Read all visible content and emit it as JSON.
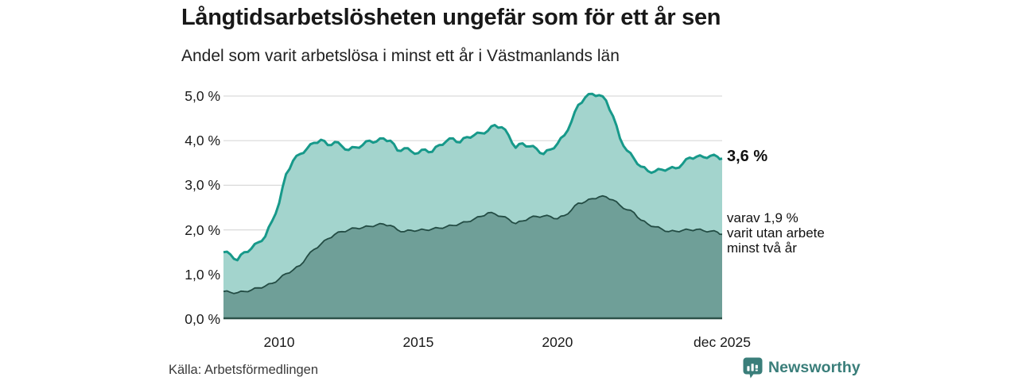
{
  "header": {
    "title": "Långtidsarbetslösheten ungefär som för ett år sen",
    "subtitle": "Andel som varit arbetslösa i minst ett år i Västmanlands län"
  },
  "annotations": {
    "total_end_label": "3,6 %",
    "subset_lines": [
      "varav 1,9 %",
      "varit utan arbete",
      "minst två år"
    ]
  },
  "footer": {
    "source": "Källa: Arbetsförmedlingen",
    "logo_text": "Newsworthy"
  },
  "colors": {
    "total_fill": "#a3d4cd",
    "total_stroke": "#17998a",
    "subset_fill": "#6f9f98",
    "subset_stroke": "#234c44",
    "axis_line": "#2d5249",
    "gridline": "#d9d9d9",
    "logo_teal": "#3a7e7a"
  },
  "chart_data": {
    "type": "area",
    "title": "Långtidsarbetslösheten ungefär som för ett år sen",
    "subtitle": "Andel som varit arbetslösa i minst ett år i Västmanlands län",
    "x_range": [
      2008.0,
      2025.92
    ],
    "ylim": [
      0,
      5
    ],
    "grid": true,
    "yticks": [
      {
        "value": 0,
        "label": "0,0 %"
      },
      {
        "value": 1,
        "label": "1,0 %"
      },
      {
        "value": 2,
        "label": "2,0 %"
      },
      {
        "value": 3,
        "label": "3,0 %"
      },
      {
        "value": 4,
        "label": "4,0 %"
      },
      {
        "value": 5,
        "label": "5,0 %"
      }
    ],
    "xticks": [
      {
        "year": 2010,
        "label": "2010"
      },
      {
        "year": 2015,
        "label": "2015"
      },
      {
        "year": 2020,
        "label": "2020"
      },
      {
        "year": 2025.92,
        "label": "dec 2025"
      }
    ],
    "x_years": [
      2008.0,
      2008.25,
      2008.5,
      2008.75,
      2009.0,
      2009.25,
      2009.5,
      2009.75,
      2010.0,
      2010.25,
      2010.5,
      2010.75,
      2011.0,
      2011.25,
      2011.5,
      2011.75,
      2012.0,
      2012.25,
      2012.5,
      2012.75,
      2013.0,
      2013.25,
      2013.5,
      2013.75,
      2014.0,
      2014.25,
      2014.5,
      2014.75,
      2015.0,
      2015.25,
      2015.5,
      2015.75,
      2016.0,
      2016.25,
      2016.5,
      2016.75,
      2017.0,
      2017.25,
      2017.5,
      2017.75,
      2018.0,
      2018.25,
      2018.5,
      2018.75,
      2019.0,
      2019.25,
      2019.5,
      2019.75,
      2020.0,
      2020.25,
      2020.5,
      2020.75,
      2021.0,
      2021.25,
      2021.5,
      2021.75,
      2022.0,
      2022.25,
      2022.5,
      2022.75,
      2023.0,
      2023.25,
      2023.5,
      2023.75,
      2024.0,
      2024.25,
      2024.5,
      2024.75,
      2025.0,
      2025.25,
      2025.5,
      2025.75,
      2025.92
    ],
    "series": [
      {
        "name": "Andel som varit arbetslösa i minst ett år",
        "end_value_label": "3,6 %",
        "values": [
          1.5,
          1.45,
          1.32,
          1.5,
          1.58,
          1.72,
          1.85,
          2.2,
          2.6,
          3.25,
          3.55,
          3.7,
          3.82,
          3.95,
          4.02,
          3.9,
          3.97,
          3.88,
          3.79,
          3.85,
          3.9,
          4.0,
          3.98,
          4.05,
          4.0,
          3.78,
          3.83,
          3.76,
          3.72,
          3.8,
          3.75,
          3.9,
          3.98,
          4.05,
          3.96,
          4.08,
          4.12,
          4.17,
          4.22,
          4.35,
          4.3,
          4.12,
          3.84,
          3.94,
          3.87,
          3.82,
          3.7,
          3.8,
          3.93,
          4.12,
          4.42,
          4.8,
          4.97,
          5.05,
          5.02,
          4.9,
          4.55,
          4.05,
          3.78,
          3.6,
          3.42,
          3.32,
          3.31,
          3.35,
          3.37,
          3.38,
          3.48,
          3.62,
          3.64,
          3.63,
          3.66,
          3.64,
          3.6
        ]
      },
      {
        "name": "varav utan arbete minst två år",
        "end_value_label": "varav 1,9 % varit utan arbete minst två år",
        "values": [
          0.62,
          0.6,
          0.59,
          0.62,
          0.65,
          0.7,
          0.74,
          0.8,
          0.9,
          1.02,
          1.1,
          1.2,
          1.4,
          1.56,
          1.68,
          1.8,
          1.9,
          1.96,
          2.0,
          2.04,
          2.05,
          2.08,
          2.11,
          2.13,
          2.1,
          2.0,
          1.96,
          1.99,
          1.99,
          2.0,
          2.02,
          2.04,
          2.07,
          2.1,
          2.14,
          2.18,
          2.24,
          2.3,
          2.38,
          2.36,
          2.3,
          2.24,
          2.14,
          2.2,
          2.27,
          2.3,
          2.31,
          2.3,
          2.25,
          2.32,
          2.44,
          2.6,
          2.63,
          2.7,
          2.74,
          2.74,
          2.67,
          2.55,
          2.45,
          2.39,
          2.22,
          2.13,
          2.07,
          2.02,
          1.96,
          1.97,
          1.99,
          2.0,
          2.01,
          1.98,
          1.97,
          1.95,
          1.9
        ]
      }
    ]
  }
}
